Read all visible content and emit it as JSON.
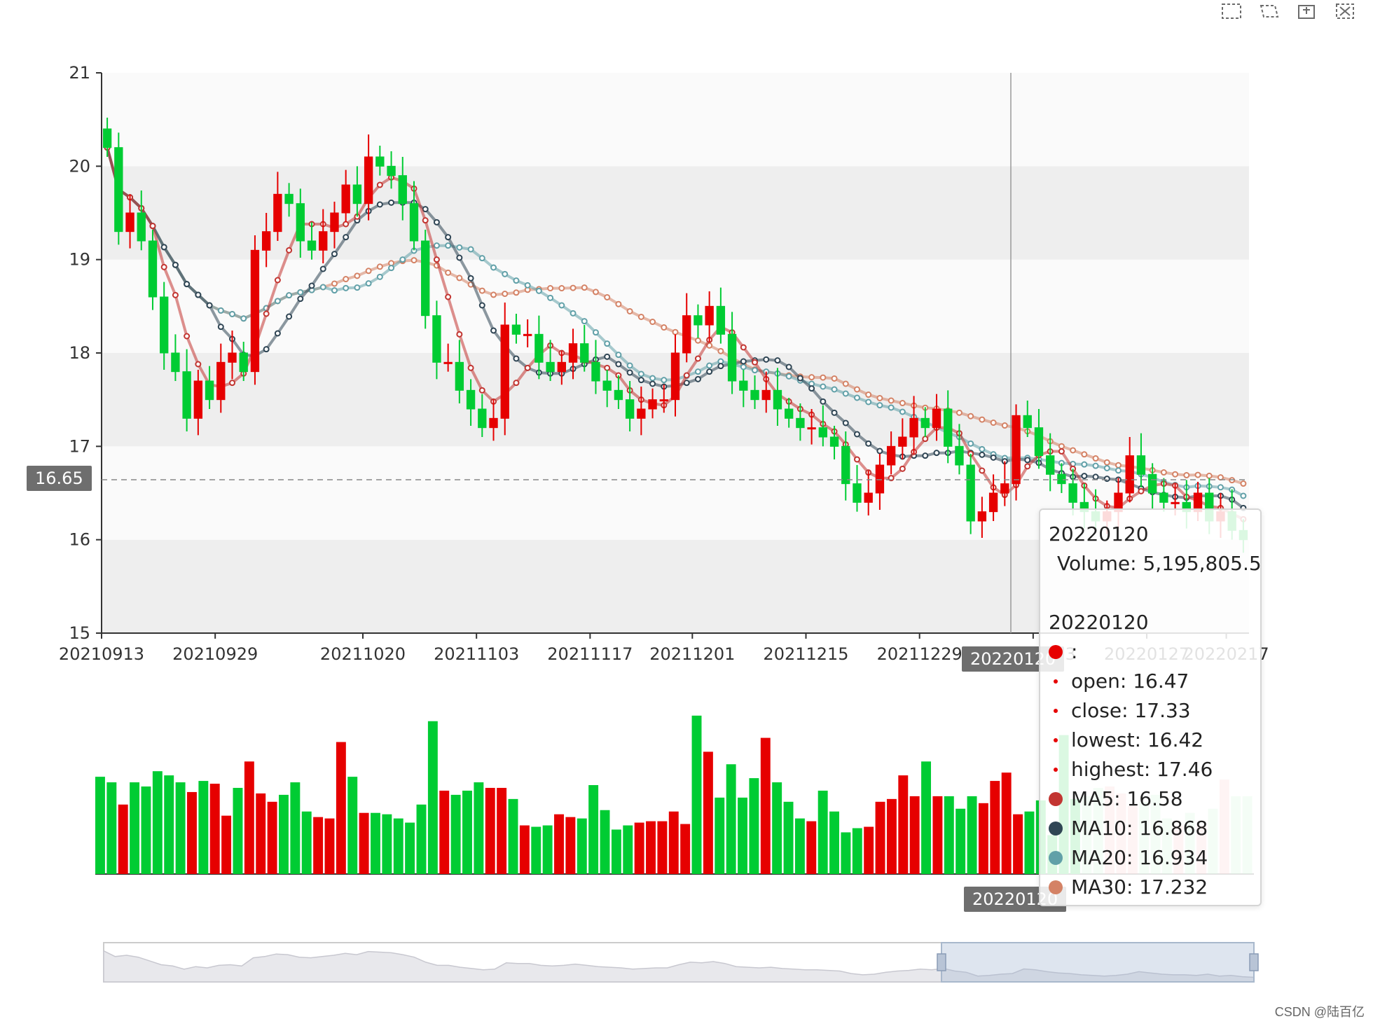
{
  "toolbox": {
    "icons": [
      "zoom-select-icon",
      "zoom-reset-icon",
      "restore-icon",
      "clear-icon"
    ]
  },
  "y_axis_label_current": "16.65",
  "x_axis_pointer_label": "20220120",
  "volume_pointer_label": "20220120",
  "tooltip": {
    "date1": "20220120",
    "volume_text": "Volume: 5,195,805.5",
    "date2": "20220120",
    "series_colon": ":",
    "open": "open: 16.47",
    "close": "close: 17.33",
    "lowest": "lowest: 16.42",
    "highest": "highest: 17.46",
    "ma5": "MA5: 16.58",
    "ma10": "MA10: 16.868",
    "ma20": "MA20: 16.934",
    "ma30": "MA30: 17.232"
  },
  "watermark": "CSDN @陆百亿",
  "colors": {
    "up": "#e60000",
    "down": "#00cc33",
    "ma5": "#c23531",
    "ma10": "#2f4554",
    "ma20": "#61a0a8",
    "ma30": "#d48265",
    "band": "#eeeeee"
  },
  "chart_data": {
    "type": "candlestick",
    "y_ticks": [
      "15",
      "16",
      "17",
      "18",
      "19",
      "20",
      "21"
    ],
    "x_ticks": [
      "20210913",
      "20210929",
      "20211020",
      "20211103",
      "20211117",
      "20211201",
      "20211215",
      "20211229",
      "20220113",
      "20220127",
      "20220217"
    ],
    "ylim": [
      15,
      21
    ],
    "candles_close": [
      20.2,
      19.3,
      19.5,
      19.2,
      18.6,
      18.0,
      17.8,
      17.3,
      17.7,
      17.5,
      17.9,
      18.0,
      17.8,
      19.1,
      19.3,
      19.7,
      19.6,
      19.2,
      19.1,
      19.3,
      19.5,
      19.8,
      19.6,
      20.1,
      20.0,
      19.9,
      19.6,
      19.2,
      18.4,
      17.9,
      17.9,
      17.6,
      17.4,
      17.2,
      17.3,
      18.3,
      18.2,
      18.2,
      17.9,
      17.8,
      17.9,
      18.1,
      17.9,
      17.7,
      17.6,
      17.5,
      17.3,
      17.4,
      17.5,
      17.5,
      18.0,
      18.4,
      18.3,
      18.5,
      18.2,
      17.7,
      17.6,
      17.5,
      17.6,
      17.4,
      17.3,
      17.2,
      17.2,
      17.1,
      17.0,
      16.6,
      16.4,
      16.5,
      16.8,
      17.0,
      17.1,
      17.3,
      17.2,
      17.4,
      17.0,
      16.8,
      16.2,
      16.3,
      16.5,
      16.6,
      17.33,
      17.2,
      16.9,
      16.7,
      16.6,
      16.4,
      16.3,
      16.2,
      16.3,
      16.5,
      16.9,
      16.7,
      16.5,
      16.4,
      16.4,
      16.3,
      16.5,
      16.2,
      16.3,
      16.1,
      16.0
    ],
    "volume_values": [
      70,
      66,
      50,
      66,
      63,
      74,
      71,
      66,
      59,
      67,
      65,
      42,
      62,
      81,
      58,
      52,
      57,
      66,
      45,
      41,
      40,
      95,
      70,
      44,
      44,
      43,
      40,
      37,
      50,
      110,
      60,
      57,
      60,
      66,
      62,
      62,
      54,
      35,
      34,
      35,
      43,
      41,
      40,
      64,
      46,
      32,
      35,
      37,
      38,
      38,
      45,
      36,
      114,
      88,
      55,
      79,
      55,
      69,
      98,
      66,
      52,
      40,
      38,
      60,
      45,
      30,
      33,
      34,
      52,
      54,
      71,
      56,
      81,
      56,
      56,
      47,
      56,
      51,
      67,
      73,
      43,
      45,
      53,
      28,
      100,
      54,
      56,
      62,
      63,
      58,
      49,
      52,
      57,
      40,
      35,
      44,
      35,
      47,
      68,
      56,
      56
    ],
    "series": [
      {
        "name": "MA5"
      },
      {
        "name": "MA10"
      },
      {
        "name": "MA20"
      },
      {
        "name": "MA30"
      },
      {
        "name": "Volume"
      }
    ]
  }
}
